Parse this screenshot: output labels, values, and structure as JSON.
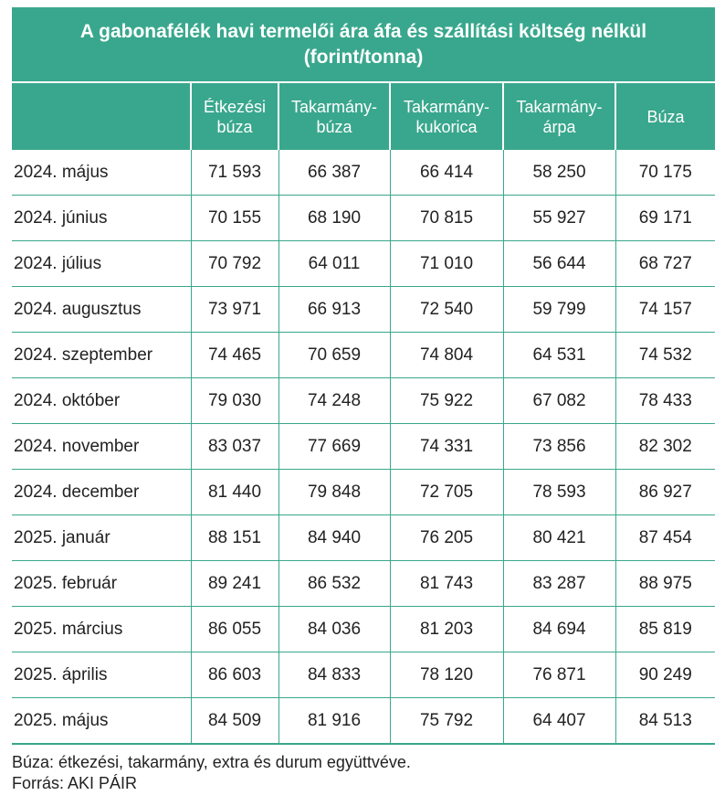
{
  "title": "A gabonafélék havi termelői ára áfa és szállítási költség nélkül (forint/tonna)",
  "columns": [
    "",
    "Étkezési búza",
    "Takarmány­búza",
    "Takarmány­kukorica",
    "Takarmány­árpa",
    "Búza"
  ],
  "rows": [
    {
      "label": "2024. május",
      "values": [
        "71 593",
        "66 387",
        "66 414",
        "58 250",
        "70 175"
      ]
    },
    {
      "label": "2024. június",
      "values": [
        "70 155",
        "68 190",
        "70 815",
        "55 927",
        "69 171"
      ]
    },
    {
      "label": "2024. július",
      "values": [
        "70 792",
        "64 011",
        "71 010",
        "56 644",
        "68 727"
      ]
    },
    {
      "label": "2024. augusztus",
      "values": [
        "73 971",
        "66 913",
        "72 540",
        "59 799",
        "74 157"
      ]
    },
    {
      "label": "2024. szeptember",
      "values": [
        "74 465",
        "70 659",
        "74 804",
        "64 531",
        "74 532"
      ]
    },
    {
      "label": "2024. október",
      "values": [
        "79 030",
        "74 248",
        "75 922",
        "67 082",
        "78 433"
      ]
    },
    {
      "label": "2024. november",
      "values": [
        "83 037",
        "77 669",
        "74 331",
        "73 856",
        "82 302"
      ]
    },
    {
      "label": "2024. december",
      "values": [
        "81 440",
        "79 848",
        "72 705",
        "78 593",
        "86 927"
      ]
    },
    {
      "label": "2025. január",
      "values": [
        "88 151",
        "84 940",
        "76 205",
        "80 421",
        "87 454"
      ]
    },
    {
      "label": "2025. február",
      "values": [
        "89 241",
        "86 532",
        "81 743",
        "83 287",
        "88 975"
      ]
    },
    {
      "label": "2025. március",
      "values": [
        "86 055",
        "84 036",
        "81 203",
        "84 694",
        "85 819"
      ]
    },
    {
      "label": "2025. április",
      "values": [
        "86 603",
        "84 833",
        "78 120",
        "76 871",
        "90 249"
      ]
    },
    {
      "label": "2025. május",
      "values": [
        "84 509",
        "81 916",
        "75 792",
        "64 407",
        "84 513"
      ]
    }
  ],
  "footnote": "Búza: étkezési, takarmány, extra és durum együttvéve.",
  "source": "Forrás: AKI PÁIR",
  "colors": {
    "accent": "#39a78d"
  }
}
